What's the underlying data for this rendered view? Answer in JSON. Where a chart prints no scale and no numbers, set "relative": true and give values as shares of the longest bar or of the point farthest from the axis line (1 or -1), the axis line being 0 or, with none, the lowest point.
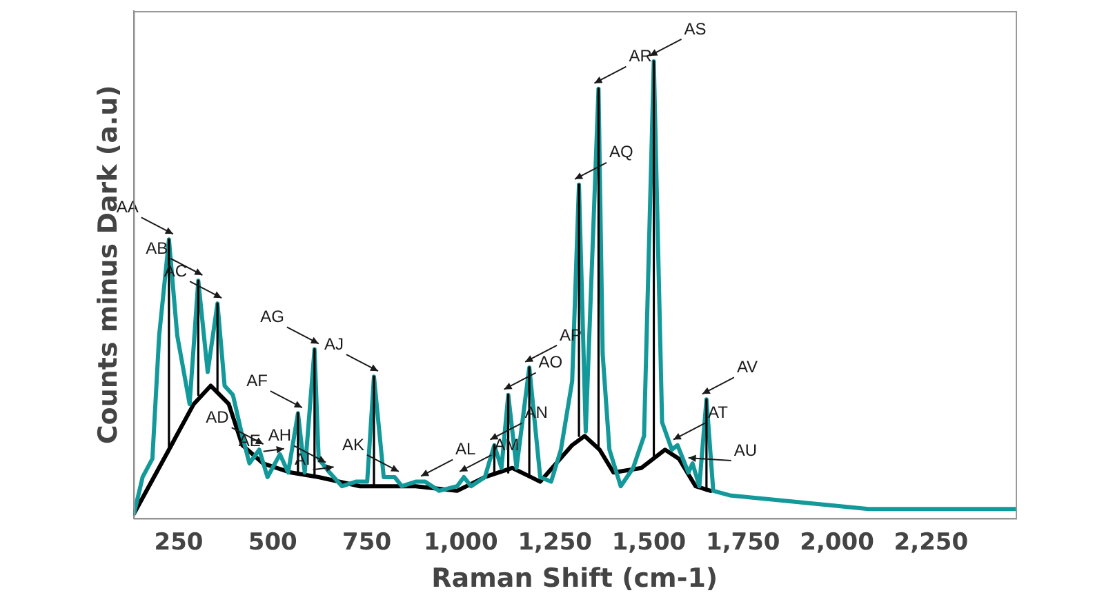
{
  "chart_data": {
    "type": "line",
    "relative": true,
    "xlabel": "Raman Shift (cm-1)",
    "ylabel": "Counts minus Dark (a.u)",
    "xlim": [
      130,
      2475
    ],
    "xticks": [
      250,
      500,
      750,
      {
        "value": 1000,
        "label": "1,000"
      },
      {
        "value": 1250,
        "label": "1,250"
      },
      {
        "value": 1500,
        "label": "1,500"
      },
      {
        "value": 1750,
        "label": "1,750"
      },
      {
        "value": 2000,
        "label": "2,000"
      },
      {
        "value": 2250,
        "label": "2,250"
      }
    ],
    "grid": false,
    "legend": false,
    "marker": "none",
    "line_style": "solid",
    "series": [
      {
        "color": "#13999a",
        "x": [
          131,
          154,
          180,
          198,
          224,
          246,
          279,
          302,
          327,
          353,
          372,
          394,
          419,
          438,
          464,
          486,
          519,
          541,
          567,
          585,
          611,
          622,
          651,
          684,
          721,
          751,
          769,
          795,
          824,
          843,
          880,
          905,
          942,
          990,
          1008,
          1027,
          1064,
          1089,
          1108,
          1126,
          1148,
          1182,
          1211,
          1240,
          1266,
          1296,
          1314,
          1332,
          1366,
          1377,
          1395,
          1425,
          1458,
          1487,
          1513,
          1535,
          1561,
          1576,
          1605,
          1616,
          1634,
          1653,
          1671,
          1715,
          1837,
          2084,
          2327,
          2474
        ],
        "values": [
          0.01,
          0.09,
          0.13,
          0.4,
          0.61,
          0.4,
          0.25,
          0.52,
          0.32,
          0.47,
          0.29,
          0.27,
          0.18,
          0.12,
          0.15,
          0.09,
          0.14,
          0.1,
          0.23,
          0.1,
          0.37,
          0.13,
          0.1,
          0.07,
          0.08,
          0.08,
          0.31,
          0.09,
          0.09,
          0.07,
          0.08,
          0.08,
          0.06,
          0.07,
          0.09,
          0.07,
          0.09,
          0.16,
          0.11,
          0.27,
          0.11,
          0.33,
          0.09,
          0.08,
          0.15,
          0.3,
          0.73,
          0.19,
          0.94,
          0.36,
          0.15,
          0.07,
          0.11,
          0.18,
          1.0,
          0.21,
          0.15,
          0.16,
          0.1,
          0.12,
          0.07,
          0.26,
          0.06,
          0.05,
          0.04,
          0.02,
          0.02,
          0.02
        ]
      },
      {
        "color": "#000000",
        "x": [
          131,
          224,
          290,
          335,
          383,
          419,
          474,
          548,
          622,
          732,
          880,
          990,
          1064,
          1137,
          1211,
          1296,
          1329,
          1369,
          1406,
          1480,
          1543,
          1580,
          1624,
          1664
        ],
        "values": [
          0.01,
          0.15,
          0.25,
          0.29,
          0.25,
          0.16,
          0.12,
          0.1,
          0.09,
          0.07,
          0.07,
          0.06,
          0.09,
          0.11,
          0.08,
          0.16,
          0.18,
          0.15,
          0.1,
          0.11,
          0.15,
          0.13,
          0.07,
          0.06
        ]
      },
      {
        "color": "#000000",
        "x": [
          224,
          224,
          null,
          302,
          302,
          null,
          353,
          353,
          null,
          567,
          567,
          null,
          611,
          611,
          null,
          769,
          769,
          null,
          1089,
          1089,
          null,
          1126,
          1126,
          null,
          1182,
          1182,
          null,
          1314,
          1314,
          null,
          1366,
          1366,
          null,
          1513,
          1513,
          null,
          1653,
          1653
        ],
        "values": [
          0.15,
          0.61,
          null,
          0.27,
          0.52,
          null,
          0.28,
          0.47,
          null,
          0.1,
          0.23,
          null,
          0.09,
          0.37,
          null,
          0.07,
          0.31,
          null,
          0.1,
          0.16,
          null,
          0.1,
          0.27,
          null,
          0.09,
          0.33,
          null,
          0.18,
          0.73,
          null,
          0.15,
          0.94,
          null,
          0.13,
          1.0,
          null,
          0.06,
          0.26
        ]
      }
    ],
    "annotations": [
      {
        "text": "AA",
        "x": 224,
        "y": 0.61
      },
      {
        "text": "AB",
        "x": 302,
        "y": 0.52
      },
      {
        "text": "AC",
        "x": 353,
        "y": 0.47
      },
      {
        "text": "AD",
        "x": 464,
        "y": 0.15
      },
      {
        "text": "AE",
        "x": 519,
        "y": 0.14
      },
      {
        "text": "AF",
        "x": 567,
        "y": 0.23
      },
      {
        "text": "AG",
        "x": 611,
        "y": 0.37
      },
      {
        "text": "AH",
        "x": 630,
        "y": 0.11
      },
      {
        "text": "AI",
        "x": 651,
        "y": 0.1
      },
      {
        "text": "AJ",
        "x": 769,
        "y": 0.31
      },
      {
        "text": "AK",
        "x": 824,
        "y": 0.09
      },
      {
        "text": "AL",
        "x": 905,
        "y": 0.08
      },
      {
        "text": "AM",
        "x": 1008,
        "y": 0.09
      },
      {
        "text": "AN",
        "x": 1089,
        "y": 0.16
      },
      {
        "text": "AO",
        "x": 1126,
        "y": 0.27
      },
      {
        "text": "AP",
        "x": 1182,
        "y": 0.33
      },
      {
        "text": "AQ",
        "x": 1314,
        "y": 0.73
      },
      {
        "text": "AR",
        "x": 1366,
        "y": 0.94
      },
      {
        "text": "AS",
        "x": 1513,
        "y": 1.0
      },
      {
        "text": "AT",
        "x": 1576,
        "y": 0.16
      },
      {
        "text": "AU",
        "x": 1616,
        "y": 0.12
      },
      {
        "text": "AV",
        "x": 1653,
        "y": 0.26
      }
    ]
  }
}
